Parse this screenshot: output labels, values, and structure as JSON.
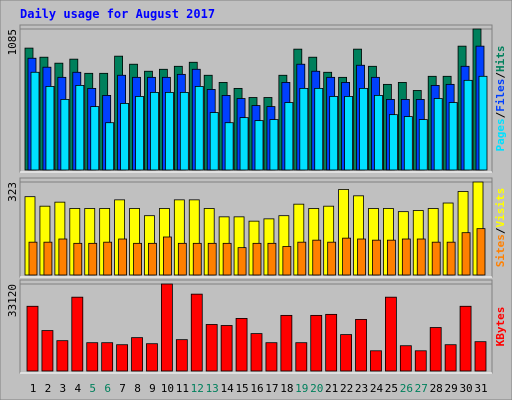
{
  "chart_data": {
    "type": "bar",
    "title": "Daily usage for August 2017",
    "categories": [
      "1",
      "2",
      "3",
      "4",
      "5",
      "6",
      "7",
      "8",
      "9",
      "10",
      "11",
      "12",
      "13",
      "14",
      "15",
      "16",
      "17",
      "18",
      "19",
      "20",
      "21",
      "22",
      "23",
      "24",
      "25",
      "26",
      "27",
      "28",
      "29",
      "30",
      "31"
    ],
    "category_colors": [
      "#000000",
      "#000000",
      "#000000",
      "#000000",
      "#00805c",
      "#00805c",
      "#000000",
      "#000000",
      "#000000",
      "#000000",
      "#000000",
      "#00805c",
      "#00805c",
      "#000000",
      "#000000",
      "#000000",
      "#000000",
      "#000000",
      "#00805c",
      "#00805c",
      "#000000",
      "#000000",
      "#000000",
      "#000000",
      "#000000",
      "#00805c",
      "#00805c",
      "#000000",
      "#000000",
      "#000000",
      "#000000"
    ],
    "legend_separator": "/",
    "panels": [
      {
        "ylim": [
          0,
          1085
        ],
        "yticks": [
          1085
        ],
        "series": [
          {
            "name": "Hits",
            "color": "#00805c",
            "values": [
              938,
              868,
              822,
              853,
              744,
              744,
              876,
              814,
              760,
              775,
              798,
              829,
              729,
              674,
              628,
              558,
              558,
              729,
              930,
              868,
              752,
              713,
              930,
              798,
              659,
              674,
              612,
              721,
              721,
              953,
              1085
            ]
          },
          {
            "name": "Files",
            "color": "#0040ff",
            "values": [
              860,
              791,
              713,
              752,
              628,
              574,
              729,
              713,
              713,
              713,
              736,
              775,
              620,
              574,
              550,
              496,
              488,
              674,
              814,
              760,
              713,
              674,
              806,
              713,
              543,
              543,
              543,
              651,
              659,
              798,
              953
            ]
          },
          {
            "name": "Pages",
            "color": "#00e0ff",
            "values": [
              752,
              643,
              543,
              651,
              488,
              364,
              512,
              566,
              597,
              597,
              597,
              643,
              442,
              364,
              403,
              380,
              388,
              519,
              628,
              628,
              566,
              566,
              628,
              574,
              426,
              411,
              388,
              550,
              519,
              690,
              721
            ]
          }
        ]
      },
      {
        "ylim": [
          0,
          323
        ],
        "yticks": [
          323
        ],
        "series": [
          {
            "name": "Visits",
            "color": "#ffff00",
            "values": [
              272,
              239,
              253,
              231,
              231,
              231,
              261,
              231,
              206,
              231,
              261,
              261,
              231,
              202,
              202,
              187,
              195,
              206,
              246,
              231,
              239,
              297,
              275,
              231,
              231,
              220,
              224,
              231,
              250,
              290,
              323
            ]
          },
          {
            "name": "Sites",
            "color": "#ff8000",
            "values": [
              114,
              114,
              125,
              110,
              110,
              114,
              125,
              110,
              110,
              132,
              110,
              110,
              110,
              110,
              95,
              110,
              110,
              99,
              114,
              121,
              114,
              128,
              125,
              121,
              121,
              125,
              125,
              114,
              114,
              147,
              161
            ]
          }
        ]
      },
      {
        "ylim": [
          0,
          33120
        ],
        "yticks": [
          33120
        ],
        "series": [
          {
            "name": "KBytes",
            "color": "#ff0000",
            "values": [
              24640,
              15400,
              11550,
              28105,
              10780,
              10780,
              10010,
              12705,
              10395,
              33120,
              11935,
              29260,
              17710,
              17325,
              20020,
              14245,
              10780,
              21175,
              10780,
              21175,
              21560,
              13860,
              19635,
              7700,
              28105,
              9625,
              7700,
              16555,
              10010,
              24640,
              11165
            ]
          }
        ]
      }
    ]
  }
}
